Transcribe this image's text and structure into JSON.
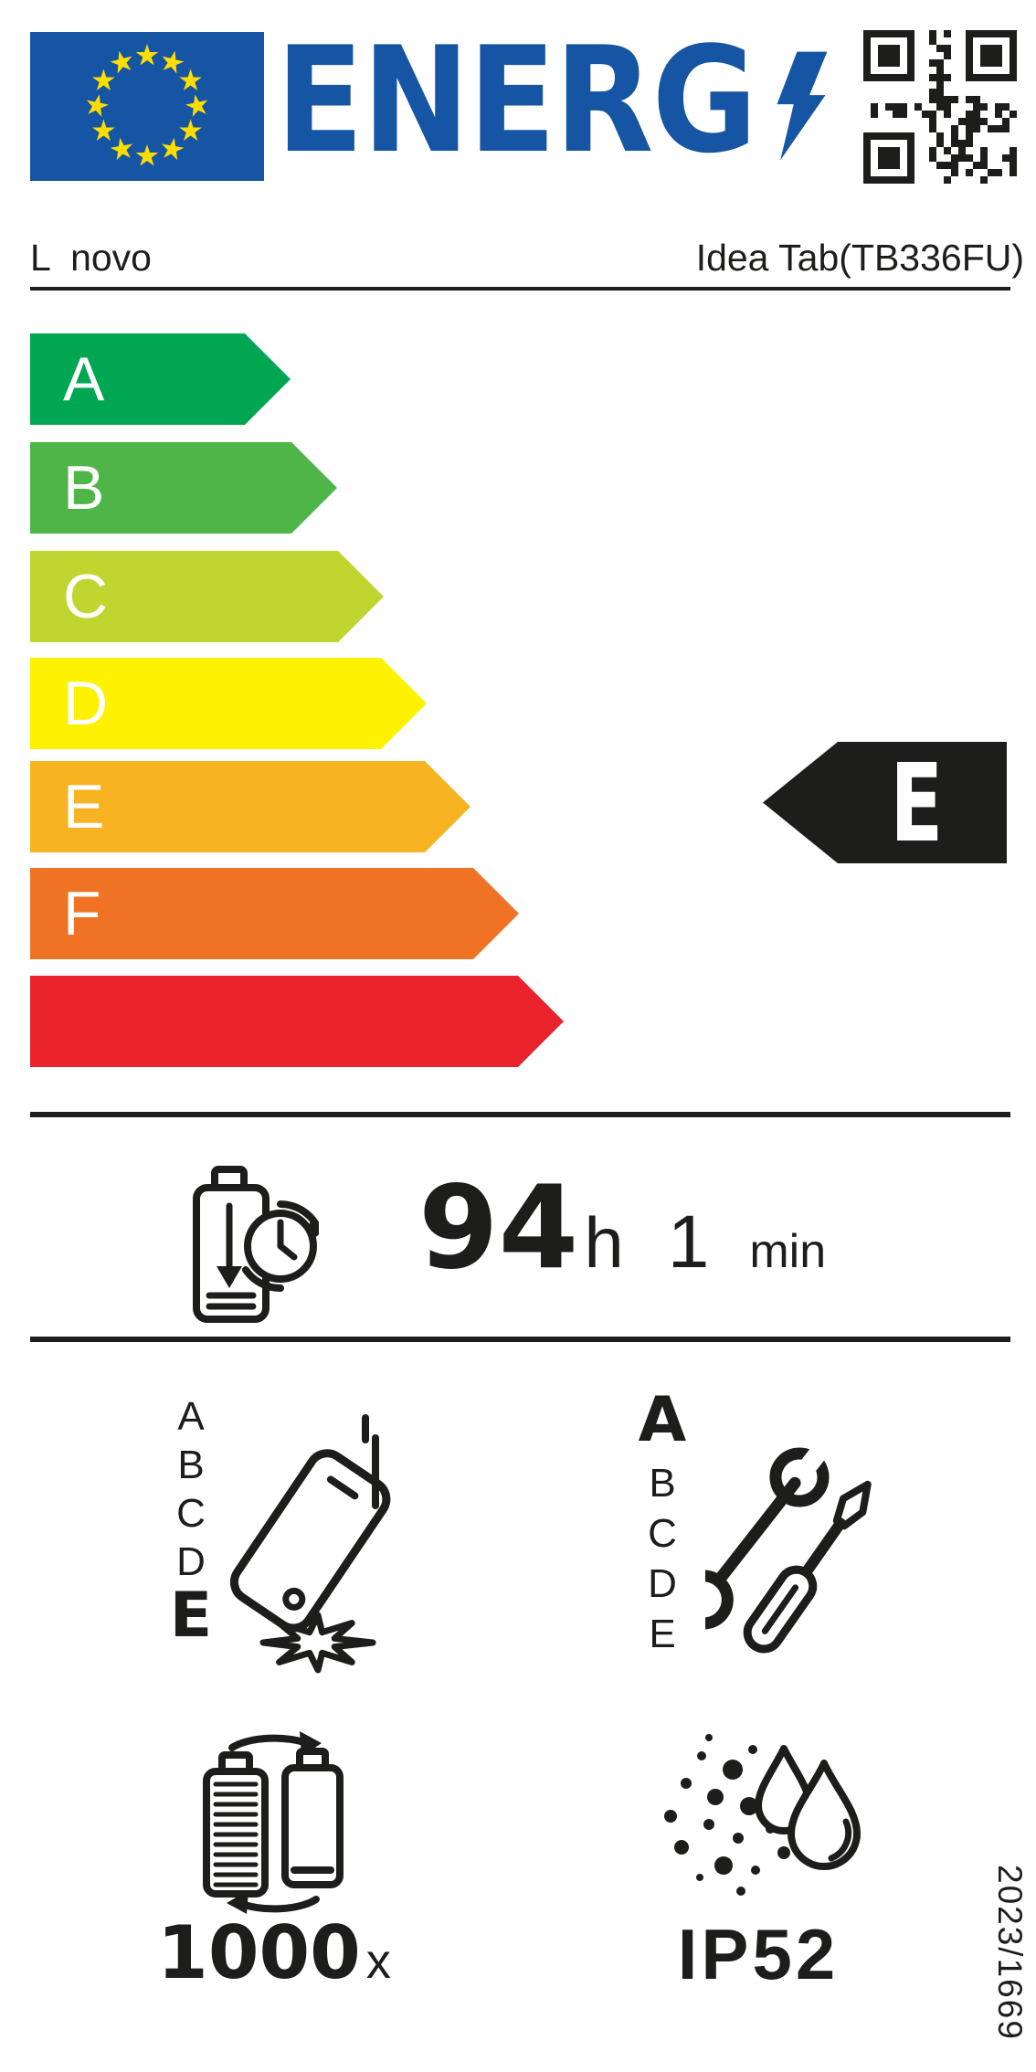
{
  "colors": {
    "ink_hex": "#1d1d1b",
    "eu_blue_hex": "#1655a3",
    "star_yellow_hex": "#ffdd00"
  },
  "header": {
    "energy_logo_text": "ENERG"
  },
  "supplier": {
    "brand": "L  novo",
    "model": "Idea Tab(TB336FU)"
  },
  "energy_scale": {
    "bars": [
      {
        "grade": "A",
        "color_hex": "#00a651"
      },
      {
        "grade": "B",
        "color_hex": "#4fb548"
      },
      {
        "grade": "C",
        "color_hex": "#bfd630"
      },
      {
        "grade": "D",
        "color_hex": "#fef200"
      },
      {
        "grade": "E",
        "color_hex": "#f8b323"
      },
      {
        "grade": "F",
        "color_hex": "#f07325"
      },
      {
        "grade": "",
        "color_hex": "#e9222c"
      }
    ],
    "rated_grade": "E",
    "arrow_color_hex": "#1d1d1b"
  },
  "battery_endurance": {
    "hours": "94",
    "hours_unit": "h",
    "minutes": "1",
    "minutes_unit": "min"
  },
  "drop_resistance": {
    "scale": [
      "A",
      "B",
      "C",
      "D",
      "E"
    ],
    "grade": "E"
  },
  "repairability": {
    "scale": [
      "A",
      "B",
      "C",
      "D",
      "E"
    ],
    "grade": "A"
  },
  "battery_cycles": {
    "count": "1000",
    "suffix": "x"
  },
  "ingress_protection": {
    "rating": "IP52"
  },
  "regulation_number": "2023/1669",
  "icons": {
    "eu-flag-icon": "blue rectangle with circle of 12 yellow stars",
    "lightning-bolt-icon": "blue lightning bolt ending the ENERGY logo",
    "qr-code-icon": "QR code",
    "battery-discharge-clock-icon": "battery with down arrow and clock",
    "phone-drop-icon": "falling phone with impact burst",
    "repair-tools-icon": "crossed wrench and screwdriver",
    "battery-cycles-icon": "two batteries with circular recharge arrows",
    "dust-water-icon": "dust particles and water drops"
  }
}
